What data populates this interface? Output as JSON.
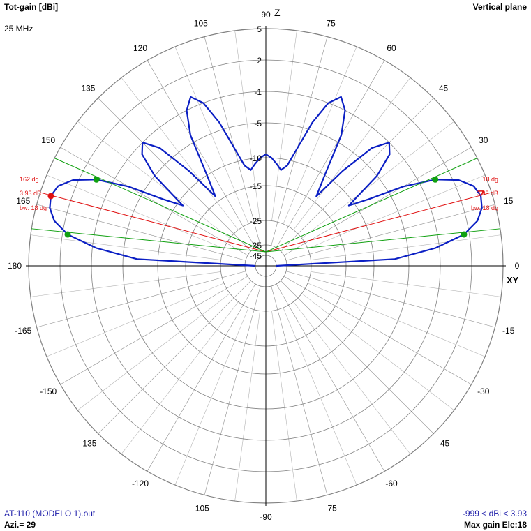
{
  "header": {
    "title_left": "Tot-gain [dBi]",
    "title_right": "Vertical plane",
    "frequency": "25 MHz"
  },
  "footer": {
    "file": "AT-110 (MODELO 1).out",
    "azimuth": "Azi.= 29",
    "gain_range": "-999 < dBi < 3.93",
    "max_gain": "Max gain Ele:18"
  },
  "colors": {
    "pattern": "#0b1fc4",
    "max_marker": "#e01010",
    "bw_marker": "#10a010",
    "grid": "#808080"
  },
  "chart_data": {
    "type": "polar",
    "title": "Tot-gain [dBi]",
    "plane": "Vertical plane",
    "angle_ticks": [
      90,
      75,
      60,
      45,
      30,
      15,
      0,
      -15,
      -30,
      -45,
      -60,
      -75,
      -90,
      -105,
      -120,
      -135,
      -150,
      -165,
      180,
      165,
      150,
      135,
      120,
      105
    ],
    "ring_labels": [
      "5",
      "2",
      "-1",
      "-5",
      "-10",
      "-15",
      "-25",
      "-35",
      "-45"
    ],
    "axis_labels": {
      "top": "Z",
      "right": "XY"
    },
    "series": [
      {
        "elevation_deg": [
          0,
          3,
          6,
          9,
          12,
          15,
          18,
          21,
          24,
          27,
          30,
          33,
          36,
          39,
          42,
          45,
          48,
          51,
          54,
          57,
          60,
          63,
          66,
          69,
          72,
          75,
          78,
          81,
          84,
          87,
          90
        ],
        "gain_dbi": [
          -45,
          -7,
          -1.5,
          1.5,
          3.0,
          3.7,
          3.93,
          3.6,
          2.5,
          0.5,
          -3.0,
          -8.0,
          -11.0,
          -5.0,
          -2.0,
          -1.0,
          -3.0,
          -8.0,
          -14.0,
          -10.0,
          -4.0,
          -1.0,
          0.0,
          -1.0,
          -4.0,
          -8.0,
          -11.0,
          -12.0,
          -11.0,
          -10.0,
          -9.5
        ]
      }
    ],
    "max_gain": {
      "value_dbi": 3.93,
      "elevation_deg": 18,
      "label_angle_right": "18 dg",
      "label_angle_left": "162 dg",
      "label_gain": "3.93 dB",
      "label_bw": "bw: 18 dg"
    },
    "beamwidth": {
      "value_deg": 18,
      "edges_deg": [
        9,
        27
      ]
    }
  }
}
